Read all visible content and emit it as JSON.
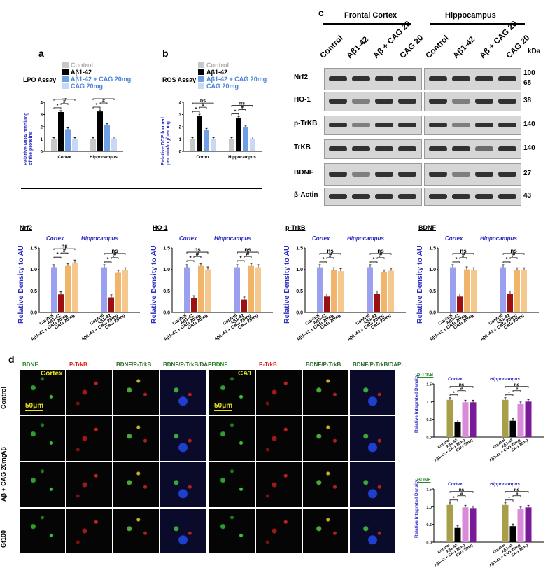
{
  "panel_labels": {
    "a": "a",
    "b": "b",
    "c": "c",
    "d": "d"
  },
  "panel_a": {
    "title": "LPO Assay",
    "ylabel_line1": "Relative MDA nmol/mg",
    "ylabel_line2": "of the proteins"
  },
  "panel_b": {
    "title": "ROS Assay",
    "ylabel_line1": "Relative DCF formed",
    "ylabel_line2": "per min/mg/per mg"
  },
  "legend_ab": {
    "items": [
      {
        "label": "Control",
        "color": "#c8c8c8"
      },
      {
        "label": "Aβ1-42",
        "color": "#000000"
      },
      {
        "label": "Aβ1-42 + CAG 20mg",
        "color": "#6fa0e6"
      },
      {
        "label": "CAG 20mg",
        "color": "#c9d9f3"
      }
    ]
  },
  "western_blot": {
    "region_frontal": "Frontal Cortex",
    "region_hippo": "Hippocampus",
    "lanes": [
      "Control",
      "Aβ1-42",
      "Aβ + CAG 20",
      "CAG 20"
    ],
    "kda_label": "kDa",
    "rows": [
      {
        "protein": "Nrf2",
        "kda": "100",
        "kda2": "68"
      },
      {
        "protein": "HO-1",
        "kda": "38",
        "kda2": ""
      },
      {
        "protein": "p-TrKB",
        "kda": "140",
        "kda2": ""
      },
      {
        "protein": "TrKB",
        "kda": "140",
        "kda2": ""
      },
      {
        "protein": "BDNF",
        "kda": "27",
        "kda2": ""
      },
      {
        "protein": "β-Actin",
        "kda": "43",
        "kda2": ""
      }
    ]
  },
  "density_charts": {
    "ylabel": "Relative Density to AU",
    "region_left": "Cortex",
    "region_right": "Hippocampus",
    "categories": [
      "Control",
      "Aβ1-42",
      "Aβ1-42 + CAG 20mg",
      "CAG 20mg"
    ],
    "ns": "ns",
    "star": "*",
    "hash": "#",
    "colors": [
      "#9a9ff0",
      "#9b1010",
      "#f0b46a",
      "#f5c890"
    ]
  },
  "chart_data": [
    {
      "type": "bar",
      "title": "LPO Assay",
      "ylabel": "Relative MDA nmol/mg of the proteins",
      "ylim": [
        0,
        4
      ],
      "yticks": [
        0,
        1,
        2,
        3,
        4
      ],
      "groups": [
        "Cortex",
        "Hippocampus"
      ],
      "series": [
        {
          "name": "Control",
          "values": [
            1.0,
            1.0
          ]
        },
        {
          "name": "Aβ1-42",
          "values": [
            3.2,
            3.25
          ]
        },
        {
          "name": "Aβ1-42 + CAG 20mg",
          "values": [
            1.8,
            2.15
          ]
        },
        {
          "name": "CAG 20mg",
          "values": [
            1.0,
            1.05
          ]
        }
      ]
    },
    {
      "type": "bar",
      "title": "ROS Assay",
      "ylabel": "Relative DCF formed per min/mg/per mg",
      "ylim": [
        0,
        4
      ],
      "yticks": [
        0,
        1,
        2,
        3,
        4
      ],
      "groups": [
        "Cortex",
        "Hippocampus"
      ],
      "series": [
        {
          "name": "Control",
          "values": [
            1.0,
            1.0
          ]
        },
        {
          "name": "Aβ1-42",
          "values": [
            2.9,
            2.7
          ]
        },
        {
          "name": "Aβ1-42 + CAG 20mg",
          "values": [
            1.75,
            1.95
          ]
        },
        {
          "name": "CAG 20mg",
          "values": [
            1.0,
            1.05
          ]
        }
      ]
    },
    {
      "type": "bar",
      "title": "Nrf2",
      "ylabel": "Relative Density to AU",
      "ylim": [
        0,
        1.5
      ],
      "yticks": [
        "0.0",
        "0.5",
        "1.0",
        "1.5"
      ],
      "groups": [
        "Cortex",
        "Hippocampus"
      ],
      "series": [
        {
          "name": "Control",
          "values": [
            1.05,
            1.05
          ]
        },
        {
          "name": "Aβ1-42",
          "values": [
            0.42,
            0.35
          ]
        },
        {
          "name": "Aβ1-42 + CAG 20mg",
          "values": [
            1.08,
            0.92
          ]
        },
        {
          "name": "CAG 20mg",
          "values": [
            1.16,
            0.98
          ]
        }
      ]
    },
    {
      "type": "bar",
      "title": "HO-1",
      "ylabel": "Relative Density to AU",
      "ylim": [
        0,
        1.5
      ],
      "yticks": [
        "0.0",
        "0.5",
        "1.0",
        "1.5"
      ],
      "groups": [
        "Cortex",
        "Hippocampus"
      ],
      "series": [
        {
          "name": "Control",
          "values": [
            1.05,
            1.05
          ]
        },
        {
          "name": "Aβ1-42",
          "values": [
            0.33,
            0.3
          ]
        },
        {
          "name": "Aβ1-42 + CAG 20mg",
          "values": [
            1.08,
            1.08
          ]
        },
        {
          "name": "CAG 20mg",
          "values": [
            1.0,
            1.05
          ]
        }
      ]
    },
    {
      "type": "bar",
      "title": "p-TrkB",
      "ylabel": "Relative Density to AU",
      "ylim": [
        0,
        1.5
      ],
      "yticks": [
        "0.0",
        "0.5",
        "1.0",
        "1.5"
      ],
      "groups": [
        "Cortex",
        "Hippocampus"
      ],
      "series": [
        {
          "name": "Control",
          "values": [
            1.05,
            1.05
          ]
        },
        {
          "name": "Aβ1-42",
          "values": [
            0.37,
            0.44
          ]
        },
        {
          "name": "Aβ1-42 + CAG 20mg",
          "values": [
            0.98,
            0.93
          ]
        },
        {
          "name": "CAG 20mg",
          "values": [
            0.96,
            0.97
          ]
        }
      ]
    },
    {
      "type": "bar",
      "title": "BDNF",
      "ylabel": "Relative Density to AU",
      "ylim": [
        0,
        1.5
      ],
      "yticks": [
        "0.0",
        "0.5",
        "1.0",
        "1.5"
      ],
      "groups": [
        "Cortex",
        "Hippocampus"
      ],
      "series": [
        {
          "name": "Control",
          "values": [
            1.05,
            1.05
          ]
        },
        {
          "name": "Aβ1-42",
          "values": [
            0.37,
            0.44
          ]
        },
        {
          "name": "Aβ1-42 + CAG 20mg",
          "values": [
            1.0,
            0.98
          ]
        },
        {
          "name": "CAG 20mg",
          "values": [
            0.98,
            0.98
          ]
        }
      ]
    },
    {
      "type": "bar",
      "title": "p-TrKB",
      "ylabel": "Relative Integrated Density",
      "ylim": [
        0,
        1.5
      ],
      "yticks": [
        "0.0",
        "0.5",
        "1.0",
        "1.5"
      ],
      "groups": [
        "Cortex",
        "Hippocampus"
      ],
      "series": [
        {
          "name": "Control",
          "values": [
            1.05,
            1.05
          ]
        },
        {
          "name": "Aβ1-42",
          "values": [
            0.42,
            0.46
          ]
        },
        {
          "name": "Aβ1-42 + CAG 20mg",
          "values": [
            0.98,
            0.93
          ]
        },
        {
          "name": "CAG 20mg",
          "values": [
            0.98,
            1.0
          ]
        }
      ]
    },
    {
      "type": "bar",
      "title": "BDNF",
      "ylabel": "Relative Integrated Density",
      "ylim": [
        0,
        1.5
      ],
      "yticks": [
        "0.0",
        "0.5",
        "1.0",
        "1.5"
      ],
      "groups": [
        "Cortex",
        "Hippocampus"
      ],
      "series": [
        {
          "name": "Control",
          "values": [
            1.05,
            1.05
          ]
        },
        {
          "name": "Aβ1-42",
          "values": [
            0.4,
            0.45
          ]
        },
        {
          "name": "Aβ1-42 + CAG 20mg",
          "values": [
            0.98,
            0.93
          ]
        },
        {
          "name": "CAG 20mg",
          "values": [
            0.96,
            0.98
          ]
        }
      ]
    }
  ],
  "if_panel": {
    "col_headers": [
      "BDNF",
      "P-TrkB",
      "BDNF/P-TrkB",
      "BDNF/P-TrkB/DAPI",
      "BDNF",
      "P-TrkB",
      "BDNF/P-TrkB",
      "BDNF/P-TrkB/DAPI"
    ],
    "row_labels": [
      "Control",
      "Aβ",
      "Aβ + CAG 20mg",
      "Gt100"
    ],
    "region_left": "Cortex",
    "region_right": "CA1",
    "scale_left": "50μm",
    "scale_right": "50μm",
    "side_colors": [
      "#a89e4a",
      "#000000",
      "#d98ad9",
      "#7a1a9a"
    ]
  }
}
